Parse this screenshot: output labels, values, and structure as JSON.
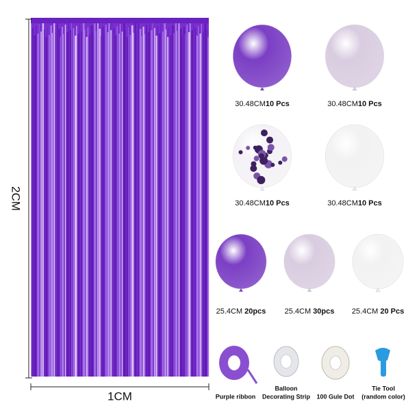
{
  "curtain": {
    "height_label": "2CM",
    "width_label": "1CM",
    "color": "#7a2fd0"
  },
  "balloons": [
    {
      "size": "30.48CM",
      "count": "10 Pcs",
      "color": "#7b3fc4"
    },
    {
      "size": "30.48CM",
      "count": "10 Pcs",
      "color": "#d9cce0"
    },
    {
      "size": "30.48CM",
      "count": "10 Pcs",
      "color": "#f4f2f6"
    },
    {
      "size": "30.48CM",
      "count": "10 Pcs",
      "color": "#f2f2f2"
    },
    {
      "size": "25.4CM",
      "count": "20pcs",
      "color": "#7b3fc4"
    },
    {
      "size": "25.4CM",
      "count": "30pcs",
      "color": "#d9cce0"
    },
    {
      "size": "25.4CM",
      "count": "20 Pcs",
      "color": "#f2f2f2"
    }
  ],
  "accessories": [
    {
      "lines": [
        "Purple ribbon"
      ]
    },
    {
      "lines": [
        "Balloon",
        "Decorating Strip"
      ]
    },
    {
      "lines": [
        "100 Gule Dot"
      ]
    },
    {
      "lines": [
        "Tie Tool",
        "(random color)"
      ]
    }
  ]
}
